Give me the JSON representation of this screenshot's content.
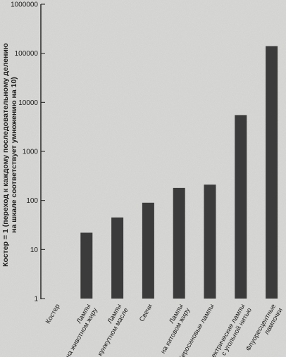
{
  "chart_data": {
    "type": "bar",
    "categories": [
      [
        "Костер"
      ],
      [
        "Лампы",
        "на животном жиру"
      ],
      [
        "Лампы",
        "на кунжутном масле"
      ],
      [
        "Свечи"
      ],
      [
        "Лампы",
        "на китовом жиру"
      ],
      [
        "Керосиновые лампы"
      ],
      [
        "Электрические лампы",
        "с угольной нитью"
      ],
      [
        "Флуоресцентные",
        "лампочки"
      ]
    ],
    "values": [
      1,
      22,
      45,
      90,
      180,
      210,
      5500,
      140000
    ],
    "ylabel_lines": [
      "Костер = 1 (переход к каждому последовательному делению",
      "на шкале соответствует умножению на 10)"
    ],
    "yticks": [
      1,
      10,
      100,
      1000,
      10000,
      100000,
      1000000
    ],
    "ytick_labels": [
      "1",
      "10",
      "100",
      "1000",
      "10000",
      "100000",
      "1000000"
    ],
    "ylim": [
      1,
      1000000
    ],
    "scale": "log",
    "grid": false,
    "colors": {
      "bar": "#3b3b3b",
      "axis": "#1e1e1e",
      "background": "#d9d9d7"
    }
  }
}
